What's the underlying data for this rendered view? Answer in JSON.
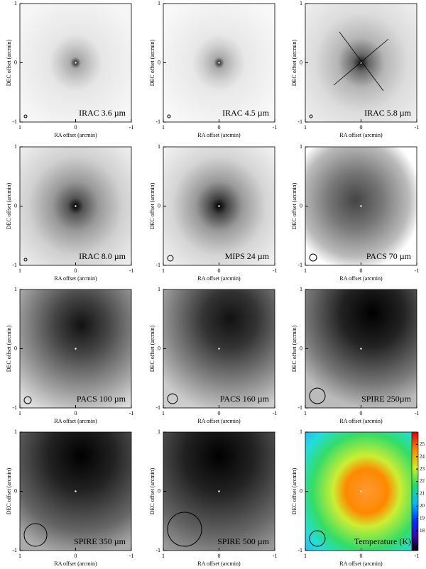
{
  "panels": [
    {
      "label": "IRAC 3.6 µm",
      "x_label": "RA offset (arcmin)",
      "y_label": "DEC offset (arcmin)",
      "xlim": [
        1,
        -1
      ],
      "ylim": [
        -1,
        1
      ],
      "xticks": [
        1,
        0,
        -1
      ],
      "yticks": [
        -1,
        0,
        1
      ]
    },
    {
      "label": "IRAC 4.5 µm",
      "x_label": "RA offset (arcmin)",
      "y_label": "DEC offset (arcmin)",
      "xlim": [
        1,
        -1
      ],
      "ylim": [
        -1,
        1
      ],
      "xticks": [
        1,
        0,
        -1
      ],
      "yticks": [
        -1,
        0,
        1
      ]
    },
    {
      "label": "IRAC 5.8 µm",
      "x_label": "RA offset (arcmin)",
      "y_label": "DEC offset (arcmin)",
      "xlim": [
        1,
        -1
      ],
      "ylim": [
        -1,
        1
      ],
      "xticks": [
        1,
        0,
        -1
      ],
      "yticks": [
        -1,
        0,
        1
      ]
    },
    {
      "label": "IRAC 8.0 µm",
      "x_label": "RA offset (arcmin)",
      "y_label": "DEC offset (arcmin)",
      "xlim": [
        1,
        -1
      ],
      "ylim": [
        -1,
        1
      ],
      "xticks": [
        1,
        0,
        -1
      ],
      "yticks": [
        -1,
        0,
        1
      ]
    },
    {
      "label": "MIPS 24 µm",
      "x_label": "RA offset (arcmin)",
      "y_label": "DEC offset (arcmin)",
      "xlim": [
        1,
        -1
      ],
      "ylim": [
        -1,
        1
      ],
      "xticks": [
        1,
        0,
        -1
      ],
      "yticks": [
        -1,
        0,
        1
      ]
    },
    {
      "label": "PACS 70 µm",
      "x_label": "RA offset (arcmin)",
      "y_label": "DEC offset (arcmin)",
      "xlim": [
        1,
        -1
      ],
      "ylim": [
        -1,
        1
      ],
      "xticks": [
        1,
        0,
        -1
      ],
      "yticks": [
        -1,
        0,
        1
      ]
    },
    {
      "label": "PACS 100 µm",
      "x_label": "RA offset (arcmin)",
      "y_label": "DEC offset (arcmin)",
      "xlim": [
        1,
        -1
      ],
      "ylim": [
        -1,
        1
      ],
      "xticks": [
        1,
        0,
        -1
      ],
      "yticks": [
        -1,
        0,
        1
      ]
    },
    {
      "label": "PACS 160 µm",
      "x_label": "RA offset (arcmin)",
      "y_label": "DEC offset (arcmin)",
      "xlim": [
        1,
        -1
      ],
      "ylim": [
        -1,
        1
      ],
      "xticks": [
        1,
        0,
        -1
      ],
      "yticks": [
        -1,
        0,
        1
      ]
    },
    {
      "label": "SPIRE 250µm",
      "x_label": "RA offset (arcmin)",
      "y_label": "DEC offset (arcmin)",
      "xlim": [
        1,
        -1
      ],
      "ylim": [
        -1,
        1
      ],
      "xticks": [
        1,
        0,
        -1
      ],
      "yticks": [
        -1,
        0,
        1
      ]
    },
    {
      "label": "SPIRE 350 µm",
      "x_label": "RA offset (arcmin)",
      "y_label": "DEC offset (arcmin)",
      "xlim": [
        1,
        -1
      ],
      "ylim": [
        -1,
        1
      ],
      "xticks": [
        1,
        0,
        -1
      ],
      "yticks": [
        -1,
        0,
        1
      ]
    },
    {
      "label": "SPIRE 500 µm",
      "x_label": "RA offset (arcmin)",
      "y_label": "DEC offset (arcmin)",
      "xlim": [
        1,
        -1
      ],
      "ylim": [
        -1,
        1
      ],
      "xticks": [
        1,
        0,
        -1
      ],
      "yticks": [
        -1,
        0,
        1
      ]
    },
    {
      "label": "Temperature (K)",
      "x_label": "RA offset (arcmin)",
      "y_label": "DEC offset (arcmin)",
      "xlim": [
        1,
        -1
      ],
      "ylim": [
        -1,
        1
      ],
      "xticks": [
        1,
        0,
        -1
      ],
      "yticks": [
        -1,
        0,
        1
      ]
    }
  ],
  "colorbar": {
    "lim": [
      16.4,
      26.0
    ],
    "ticks": [
      18,
      19,
      20,
      21,
      22,
      23,
      24,
      25
    ]
  }
}
